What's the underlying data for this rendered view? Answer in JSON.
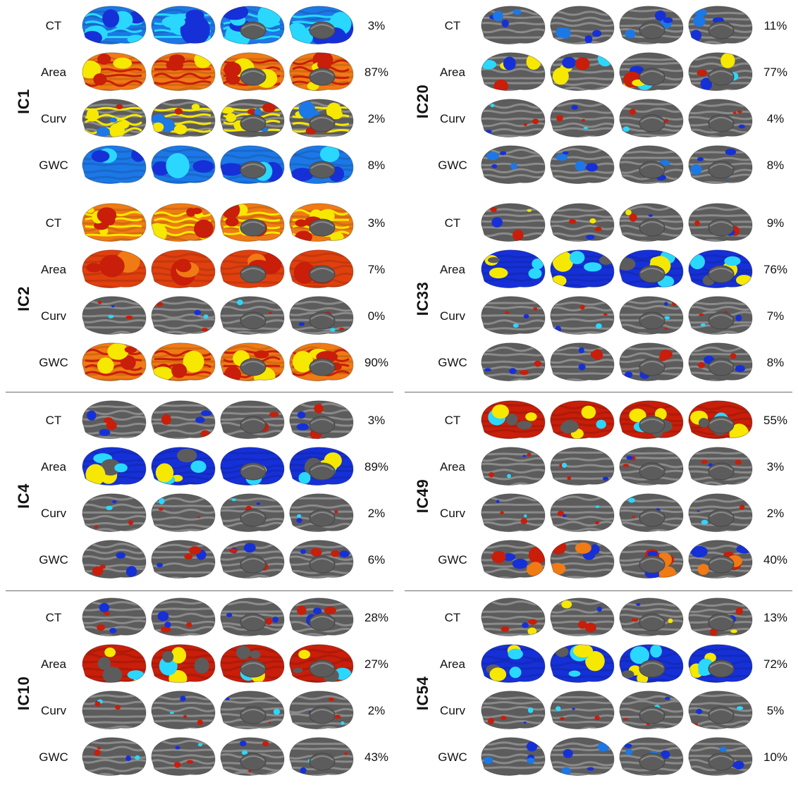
{
  "colors": {
    "cortex_dark": "#5c5c5c",
    "cortex_light": "#8a8a8a",
    "red": "#c81e0a",
    "orange": "#f07a14",
    "yellow": "#f6e800",
    "dark_blue": "#1630d8",
    "mid_blue": "#1c78e6",
    "cyan": "#2ad8ff"
  },
  "views": [
    "left-lateral",
    "right-lateral",
    "left-medial",
    "right-medial"
  ],
  "panels": [
    {
      "ic": "IC1",
      "rows": [
        {
          "metric": "CT",
          "percent": "3%",
          "pattern": "cyan-dominant"
        },
        {
          "metric": "Area",
          "percent": "87%",
          "pattern": "orange-dominant"
        },
        {
          "metric": "Curv",
          "percent": "2%",
          "pattern": "gyral-red-yellow"
        },
        {
          "metric": "GWC",
          "percent": "8%",
          "pattern": "blue-dominant"
        }
      ]
    },
    {
      "ic": "IC20",
      "rows": [
        {
          "metric": "CT",
          "percent": "11%",
          "pattern": "sparse-blue"
        },
        {
          "metric": "Area",
          "percent": "77%",
          "pattern": "yellow-cyan-mixed"
        },
        {
          "metric": "Curv",
          "percent": "4%",
          "pattern": "sparse-spots"
        },
        {
          "metric": "GWC",
          "percent": "8%",
          "pattern": "sparse-blue"
        }
      ]
    },
    {
      "ic": "IC2",
      "rows": [
        {
          "metric": "CT",
          "percent": "3%",
          "pattern": "orange-yellow"
        },
        {
          "metric": "Area",
          "percent": "7%",
          "pattern": "red-dominant"
        },
        {
          "metric": "Curv",
          "percent": "0%",
          "pattern": "sparse-spots"
        },
        {
          "metric": "GWC",
          "percent": "90%",
          "pattern": "orange-dominant"
        }
      ]
    },
    {
      "ic": "IC33",
      "rows": [
        {
          "metric": "CT",
          "percent": "9%",
          "pattern": "sparse-mixed"
        },
        {
          "metric": "Area",
          "percent": "76%",
          "pattern": "blue-yellow-mixed"
        },
        {
          "metric": "Curv",
          "percent": "7%",
          "pattern": "sparse-spots"
        },
        {
          "metric": "GWC",
          "percent": "8%",
          "pattern": "sparse-red"
        }
      ]
    },
    {
      "ic": "IC4",
      "rows": [
        {
          "metric": "CT",
          "percent": "3%",
          "pattern": "sparse-red"
        },
        {
          "metric": "Area",
          "percent": "89%",
          "pattern": "blue-yellow-mixed"
        },
        {
          "metric": "Curv",
          "percent": "2%",
          "pattern": "sparse-spots"
        },
        {
          "metric": "GWC",
          "percent": "6%",
          "pattern": "sparse-red"
        }
      ]
    },
    {
      "ic": "IC49",
      "rows": [
        {
          "metric": "CT",
          "percent": "55%",
          "pattern": "red-yellow-heavy"
        },
        {
          "metric": "Area",
          "percent": "3%",
          "pattern": "sparse-spots"
        },
        {
          "metric": "Curv",
          "percent": "2%",
          "pattern": "sparse-spots"
        },
        {
          "metric": "GWC",
          "percent": "40%",
          "pattern": "red-blue-heavy"
        }
      ]
    },
    {
      "ic": "IC10",
      "rows": [
        {
          "metric": "CT",
          "percent": "28%",
          "pattern": "sparse-red"
        },
        {
          "metric": "Area",
          "percent": "27%",
          "pattern": "red-yellow-heavy"
        },
        {
          "metric": "Curv",
          "percent": "2%",
          "pattern": "sparse-spots"
        },
        {
          "metric": "GWC",
          "percent": "43%",
          "pattern": "sparse-spots"
        }
      ]
    },
    {
      "ic": "IC54",
      "rows": [
        {
          "metric": "CT",
          "percent": "13%",
          "pattern": "sparse-mixed"
        },
        {
          "metric": "Area",
          "percent": "72%",
          "pattern": "blue-yellow-mixed"
        },
        {
          "metric": "Curv",
          "percent": "5%",
          "pattern": "sparse-spots"
        },
        {
          "metric": "GWC",
          "percent": "10%",
          "pattern": "sparse-blue"
        }
      ]
    }
  ]
}
